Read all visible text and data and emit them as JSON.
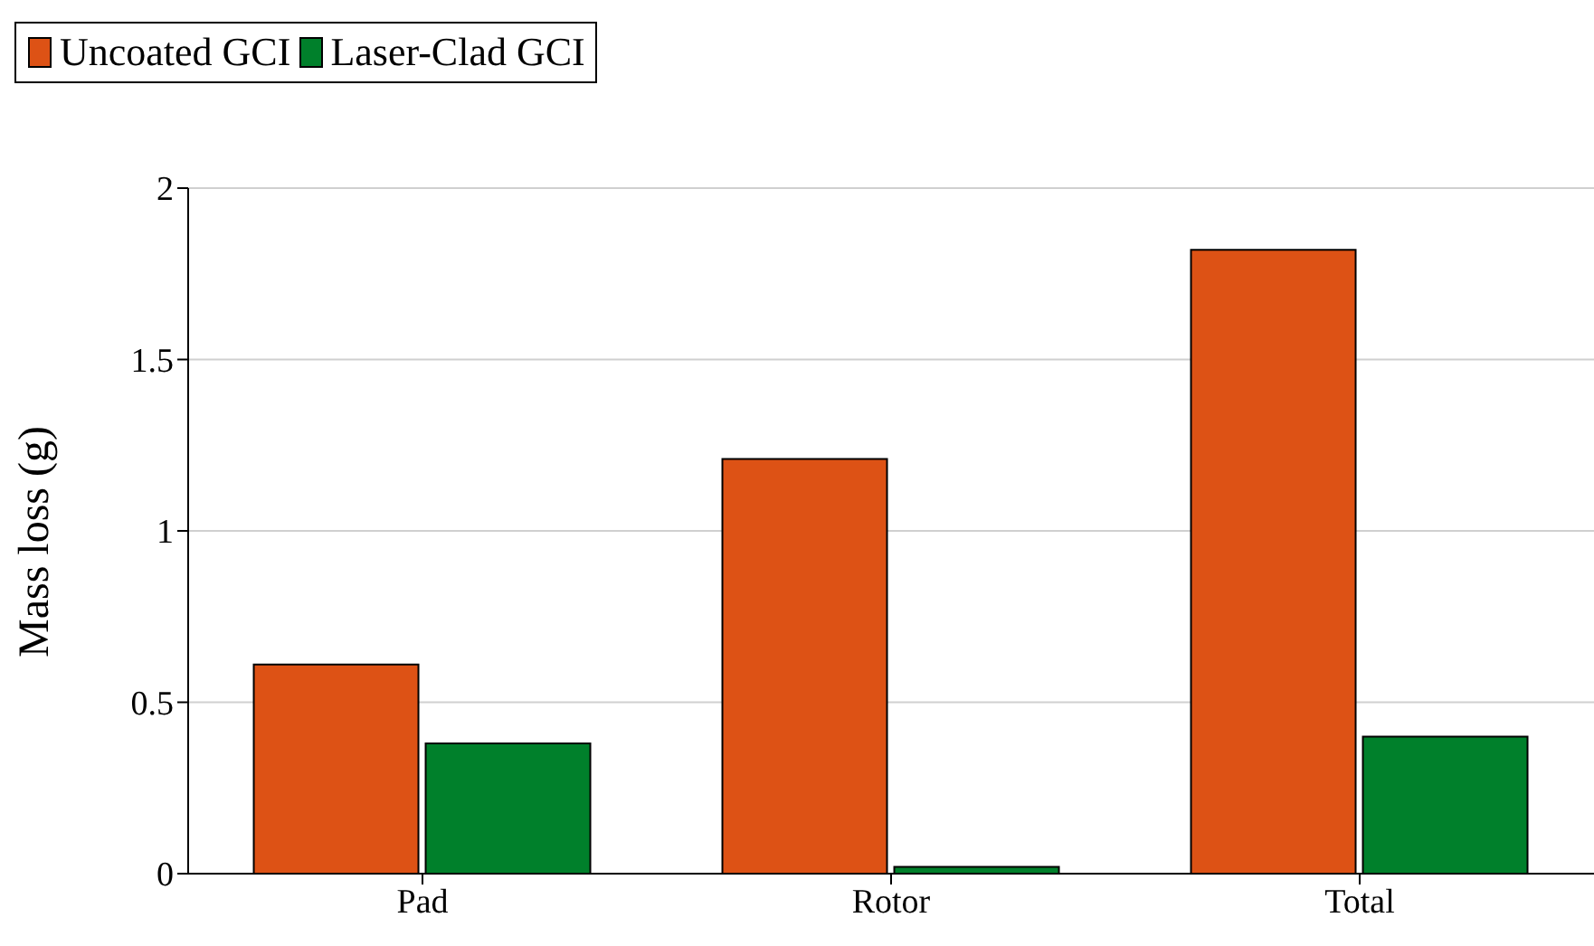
{
  "chart_data": {
    "type": "bar",
    "ylabel": "Mass loss (g)",
    "categories": [
      "Pad",
      "Rotor",
      "Total"
    ],
    "series": [
      {
        "name": "Uncoated GCI",
        "color": "#dd5215",
        "values": [
          0.61,
          1.21,
          1.82
        ]
      },
      {
        "name": "Laser-Clad GCI",
        "color": "#00802b",
        "values": [
          0.38,
          0.02,
          0.4
        ]
      }
    ],
    "ylim": [
      0,
      2
    ],
    "yticks": [
      0,
      0.5,
      1,
      1.5,
      2
    ],
    "grid": "y",
    "legend": "top"
  }
}
